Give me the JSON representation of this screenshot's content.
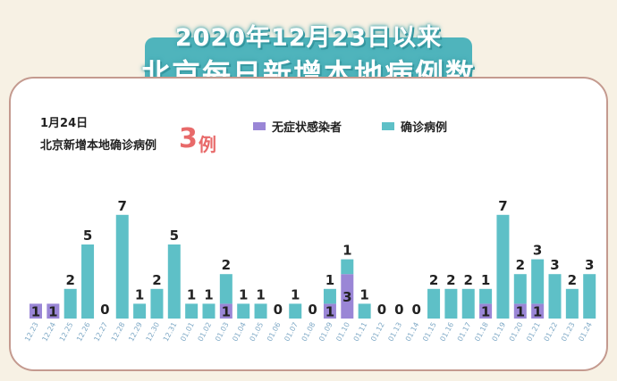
{
  "title": {
    "line1": "2020年12月23日以来",
    "line2": "北京每日新增本地病例数"
  },
  "info": {
    "date": "1月24日",
    "headline": "北京新增本地确诊病例",
    "count": "3",
    "unit": "例"
  },
  "legend": [
    {
      "label": "无症状感染者",
      "color": "#9a86d6"
    },
    {
      "label": "确诊病例",
      "color": "#5ec0c7"
    }
  ],
  "chart_data": {
    "type": "bar",
    "stacked": true,
    "categories": [
      "12.23",
      "12.24",
      "12.25",
      "12.26",
      "12.27",
      "12.28",
      "12.29",
      "12.30",
      "12.31",
      "01.01",
      "01.02",
      "01.03",
      "01.04",
      "01.05",
      "01.06",
      "01.07",
      "01.08",
      "01.09",
      "01.10",
      "01.11",
      "01.12",
      "01.13",
      "01.14",
      "01.15",
      "01.16",
      "01.17",
      "01.18",
      "01.19",
      "01.20",
      "01.21",
      "01.22",
      "01.23",
      "01.24"
    ],
    "series": [
      {
        "name": "无症状感染者",
        "color": "#9a86d6",
        "values": [
          1,
          1,
          0,
          0,
          0,
          0,
          0,
          0,
          0,
          0,
          0,
          1,
          0,
          0,
          0,
          0,
          0,
          1,
          3,
          0,
          0,
          0,
          0,
          0,
          0,
          0,
          1,
          0,
          1,
          1,
          0,
          0,
          0
        ]
      },
      {
        "name": "确诊病例",
        "color": "#5ec0c7",
        "values": [
          0,
          0,
          2,
          5,
          0,
          7,
          1,
          2,
          5,
          1,
          1,
          2,
          1,
          1,
          0,
          1,
          0,
          1,
          1,
          1,
          0,
          0,
          0,
          2,
          2,
          2,
          1,
          7,
          2,
          3,
          3,
          2,
          3
        ]
      }
    ],
    "ylim": [
      0,
      7.5
    ],
    "highlight_last_total": true
  }
}
